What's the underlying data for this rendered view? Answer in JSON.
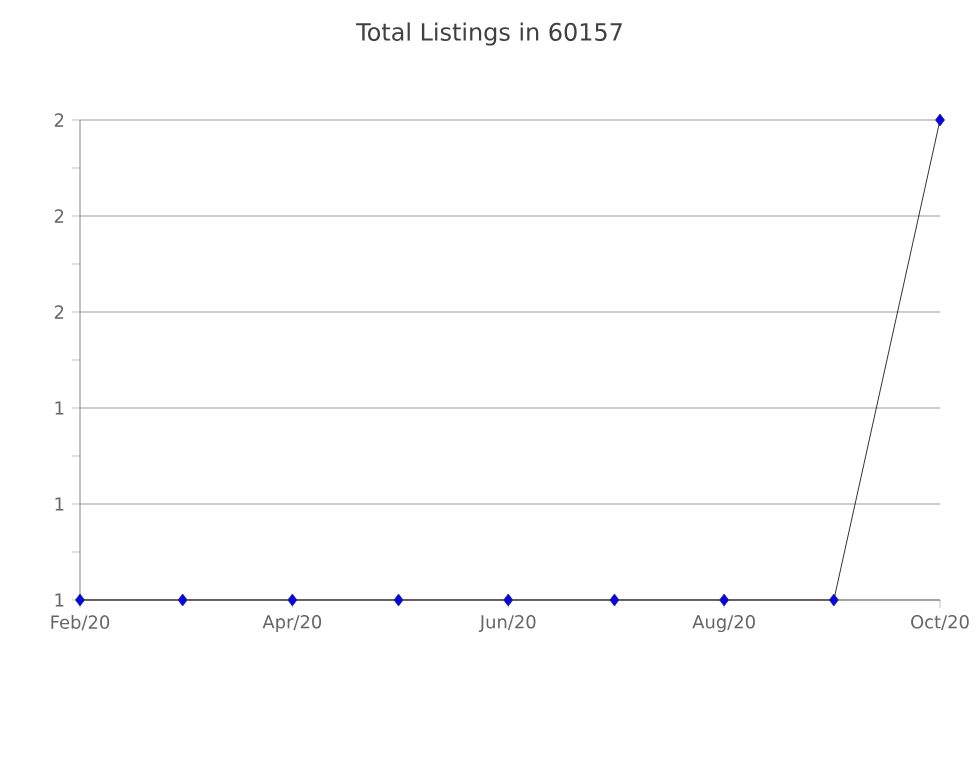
{
  "chart_data": {
    "type": "line",
    "title": "Total Listings in 60157",
    "x": [
      "2020-02",
      "2020-03",
      "2020-04",
      "2020-05",
      "2020-06",
      "2020-07",
      "2020-08",
      "2020-09",
      "2020-10"
    ],
    "series": [
      {
        "color": "#000000",
        "colors": [
          "#0000ff",
          "#0000ff",
          "#0000ff",
          "#0000ff",
          "#0000ff",
          "#0000ff",
          "#0000ff",
          "#0000ff",
          "#0000ff"
        ],
        "values": [
          1,
          1,
          1,
          1,
          1,
          1,
          1,
          1,
          2
        ]
      }
    ],
    "xlim": [
      "2020-02",
      "2020-10"
    ],
    "xticks": [
      {
        "value": "2020-02",
        "label": "Feb/20"
      },
      {
        "value": "2020-04",
        "label": "Apr/20"
      },
      {
        "value": "2020-06",
        "label": "Jun/20"
      },
      {
        "value": "2020-08",
        "label": "Aug/20"
      },
      {
        "value": "2020-10",
        "label": "Oct/20"
      }
    ],
    "ylim": [
      1,
      2
    ],
    "yticks": [
      {
        "value": 1,
        "label": "1"
      },
      {
        "value": 1.1,
        "label": null
      },
      {
        "value": 1.2,
        "label": "1"
      },
      {
        "value": 1.3,
        "label": null
      },
      {
        "value": 1.4,
        "label": "1"
      },
      {
        "value": 1.5,
        "label": null
      },
      {
        "value": 1.6,
        "label": "2"
      },
      {
        "value": 1.7,
        "label": null
      },
      {
        "value": 1.8,
        "label": "2"
      },
      {
        "value": 1.9,
        "label": null
      },
      {
        "value": 2,
        "label": "2"
      }
    ],
    "grid": "y",
    "marker": "diamond",
    "line_style": "solid"
  }
}
